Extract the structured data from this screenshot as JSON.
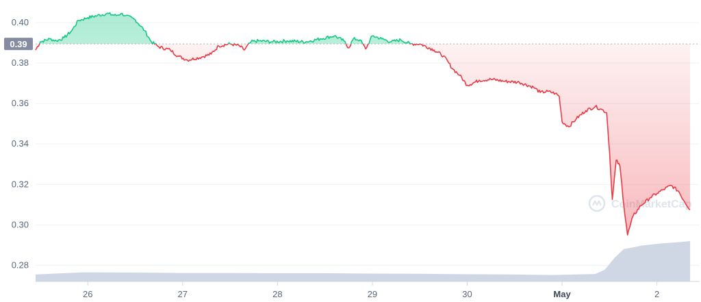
{
  "watermark": "CoinMarketCap",
  "reference_label": "0.39",
  "colors": {
    "up": "#16c784",
    "down": "#ea3943",
    "volume": "#cfd6e4",
    "grid": "#eff2f5",
    "axis_text": "#58667e",
    "reference_bg": "#858ca2",
    "reference_line": "#a6b0c3"
  },
  "chart_data": {
    "type": "line",
    "reference": 0.3895,
    "ylim": [
      0.272,
      0.4085
    ],
    "xlim": [
      0,
      7.0
    ],
    "y_ticks": [
      0.28,
      0.3,
      0.32,
      0.34,
      0.36,
      0.38,
      0.4
    ],
    "y_tick_labels": [
      "0.28",
      "0.30",
      "0.32",
      "0.34",
      "0.36",
      "0.38",
      "0.40"
    ],
    "x_ticks": [
      0.55,
      1.55,
      2.55,
      3.55,
      4.55,
      5.55,
      6.55
    ],
    "x_tick_labels": [
      "26",
      "27",
      "28",
      "29",
      "30",
      "May",
      "2"
    ],
    "x_tick_bold": [
      false,
      false,
      false,
      false,
      false,
      true,
      false
    ],
    "grid": true,
    "series": [
      {
        "points": [
          [
            0.0,
            0.3865
          ],
          [
            0.05,
            0.3905
          ],
          [
            0.15,
            0.392
          ],
          [
            0.22,
            0.391
          ],
          [
            0.3,
            0.3925
          ],
          [
            0.38,
            0.396
          ],
          [
            0.45,
            0.401
          ],
          [
            0.55,
            0.4025
          ],
          [
            0.65,
            0.4035
          ],
          [
            0.75,
            0.4045
          ],
          [
            0.85,
            0.4035
          ],
          [
            0.9,
            0.4045
          ],
          [
            0.95,
            0.4035
          ],
          [
            1.05,
            0.4015
          ],
          [
            1.15,
            0.396
          ],
          [
            1.22,
            0.3905
          ],
          [
            1.3,
            0.388
          ],
          [
            1.42,
            0.3865
          ],
          [
            1.5,
            0.3835
          ],
          [
            1.6,
            0.3815
          ],
          [
            1.75,
            0.383
          ],
          [
            1.85,
            0.3845
          ],
          [
            1.93,
            0.3885
          ],
          [
            2.05,
            0.3895
          ],
          [
            2.15,
            0.3885
          ],
          [
            2.2,
            0.3865
          ],
          [
            2.27,
            0.3905
          ],
          [
            2.35,
            0.391
          ],
          [
            2.5,
            0.3905
          ],
          [
            2.65,
            0.391
          ],
          [
            2.85,
            0.3905
          ],
          [
            3.0,
            0.392
          ],
          [
            3.15,
            0.3935
          ],
          [
            3.25,
            0.391
          ],
          [
            3.3,
            0.3875
          ],
          [
            3.35,
            0.392
          ],
          [
            3.42,
            0.3915
          ],
          [
            3.48,
            0.387
          ],
          [
            3.55,
            0.3935
          ],
          [
            3.65,
            0.392
          ],
          [
            3.75,
            0.3905
          ],
          [
            3.85,
            0.3915
          ],
          [
            3.95,
            0.3895
          ],
          [
            4.05,
            0.3895
          ],
          [
            4.2,
            0.3865
          ],
          [
            4.3,
            0.3835
          ],
          [
            4.4,
            0.377
          ],
          [
            4.47,
            0.374
          ],
          [
            4.55,
            0.369
          ],
          [
            4.68,
            0.3715
          ],
          [
            4.8,
            0.372
          ],
          [
            4.95,
            0.371
          ],
          [
            5.1,
            0.3705
          ],
          [
            5.25,
            0.368
          ],
          [
            5.32,
            0.3655
          ],
          [
            5.4,
            0.366
          ],
          [
            5.48,
            0.365
          ],
          [
            5.52,
            0.3635
          ],
          [
            5.55,
            0.351
          ],
          [
            5.62,
            0.3485
          ],
          [
            5.7,
            0.3525
          ],
          [
            5.8,
            0.3565
          ],
          [
            5.9,
            0.3585
          ],
          [
            5.97,
            0.357
          ],
          [
            6.02,
            0.3555
          ],
          [
            6.05,
            0.336
          ],
          [
            6.08,
            0.3125
          ],
          [
            6.12,
            0.332
          ],
          [
            6.16,
            0.329
          ],
          [
            6.2,
            0.31
          ],
          [
            6.24,
            0.295
          ],
          [
            6.3,
            0.3045
          ],
          [
            6.38,
            0.3095
          ],
          [
            6.48,
            0.3135
          ],
          [
            6.55,
            0.3155
          ],
          [
            6.62,
            0.3175
          ],
          [
            6.7,
            0.3195
          ],
          [
            6.78,
            0.3165
          ],
          [
            6.84,
            0.3115
          ],
          [
            6.9,
            0.3075
          ]
        ]
      }
    ],
    "volume_series": [
      [
        0.0,
        0.2755
      ],
      [
        0.5,
        0.2765
      ],
      [
        1.0,
        0.2764
      ],
      [
        1.5,
        0.2762
      ],
      [
        2.0,
        0.2762
      ],
      [
        2.5,
        0.2761
      ],
      [
        3.0,
        0.2761
      ],
      [
        3.5,
        0.2759
      ],
      [
        4.0,
        0.2758
      ],
      [
        4.5,
        0.2756
      ],
      [
        5.0,
        0.2755
      ],
      [
        5.45,
        0.2752
      ],
      [
        5.7,
        0.2755
      ],
      [
        5.9,
        0.2757
      ],
      [
        6.0,
        0.2778
      ],
      [
        6.1,
        0.2835
      ],
      [
        6.2,
        0.288
      ],
      [
        6.4,
        0.2898
      ],
      [
        6.6,
        0.2908
      ],
      [
        6.8,
        0.2915
      ],
      [
        6.9,
        0.292
      ]
    ]
  }
}
